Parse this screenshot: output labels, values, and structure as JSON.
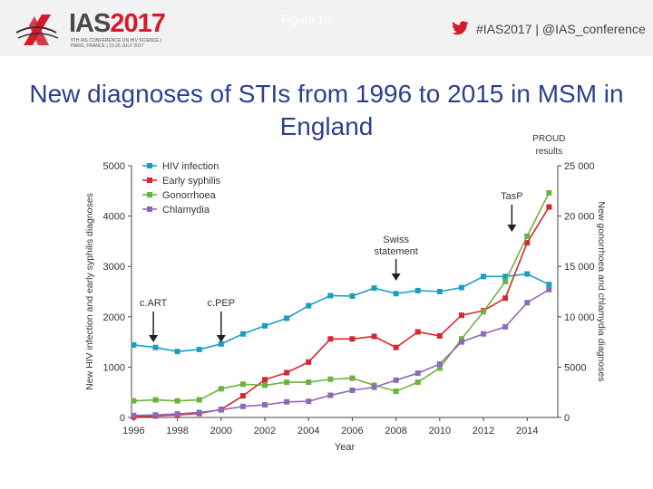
{
  "header": {
    "logo_text": "IAS",
    "logo_year": "2017",
    "logo_subtitle": "9TH IAS CONFERENCE ON HIV SCIENCE | PARIS, FRANCE | 23-26 JULY 2017",
    "figure_label": "Figure 10",
    "hashtag": "#IAS2017 | @IAS_conference"
  },
  "slide": {
    "title": "New diagnoses of STIs from 1996 to 2015 in MSM in England"
  },
  "colors": {
    "title": "#2e3f8f",
    "logo_red": "#d41a2c",
    "twitter": "#d41a2c",
    "hiv": "#1a9fc0",
    "syphilis": "#d7262e",
    "gonorrhoea": "#6cb33e",
    "chlamydia": "#8b6bb8"
  },
  "chart_data": {
    "type": "line",
    "xlabel": "Year",
    "ylabel_left": "New HIV infection and early syphilis diagnoses",
    "ylabel_right": "New gonorrhoea and chlamydia diagnoses",
    "x_ticks": [
      1996,
      1998,
      2000,
      2002,
      2004,
      2006,
      2008,
      2010,
      2012,
      2014
    ],
    "xlim": [
      1996,
      2015
    ],
    "ylim_left": [
      0,
      5000
    ],
    "ylim_right": [
      0,
      25000
    ],
    "left_ticks": [
      0,
      1000,
      2000,
      3000,
      4000,
      5000
    ],
    "right_ticks": [
      0,
      5000,
      10000,
      15000,
      20000,
      25000
    ],
    "left_tick_labels": [
      "0",
      "1000",
      "2000",
      "3000",
      "4000",
      "5000"
    ],
    "right_tick_labels": [
      "0",
      "5000",
      "10 000",
      "15 000",
      "20 000",
      "25 000"
    ],
    "x": [
      1996,
      1997,
      1998,
      1999,
      2000,
      2001,
      2002,
      2003,
      2004,
      2005,
      2006,
      2007,
      2008,
      2009,
      2010,
      2011,
      2012,
      2013,
      2014,
      2015
    ],
    "legend_position": "top-left",
    "series": [
      {
        "name": "HIV infection",
        "axis": "left",
        "color": "#1a9fc0",
        "values": [
          1440,
          1390,
          1310,
          1350,
          1460,
          1660,
          1820,
          1970,
          2220,
          2420,
          2410,
          2570,
          2460,
          2520,
          2500,
          2580,
          2800,
          2800,
          2850,
          2640
        ]
      },
      {
        "name": "Early syphilis",
        "axis": "left",
        "color": "#d7262e",
        "values": [
          10,
          30,
          50,
          80,
          160,
          430,
          750,
          890,
          1100,
          1560,
          1560,
          1610,
          1390,
          1700,
          1620,
          2030,
          2120,
          2370,
          3470,
          4180
        ]
      },
      {
        "name": "Gonorrhoea",
        "axis": "right",
        "color": "#6cb33e",
        "values": [
          1650,
          1750,
          1650,
          1750,
          2850,
          3300,
          3200,
          3500,
          3500,
          3800,
          3900,
          3200,
          2600,
          3500,
          4900,
          7800,
          10500,
          13500,
          18000,
          22300
        ]
      },
      {
        "name": "Chlamydia",
        "axis": "right",
        "color": "#8b6bb8",
        "values": [
          200,
          250,
          350,
          500,
          750,
          1100,
          1250,
          1550,
          1600,
          2200,
          2700,
          3000,
          3700,
          4400,
          5300,
          7500,
          8300,
          9000,
          11400,
          12700
        ]
      }
    ],
    "annotations": [
      {
        "label": "c.ART",
        "x": 1996.9
      },
      {
        "label": "c.PEP",
        "x": 2000
      },
      {
        "label": "Swiss statement",
        "x": 2008
      },
      {
        "label": "TasP",
        "x": 2013.3
      },
      {
        "label": "PROUD results",
        "x": 2015
      }
    ]
  }
}
